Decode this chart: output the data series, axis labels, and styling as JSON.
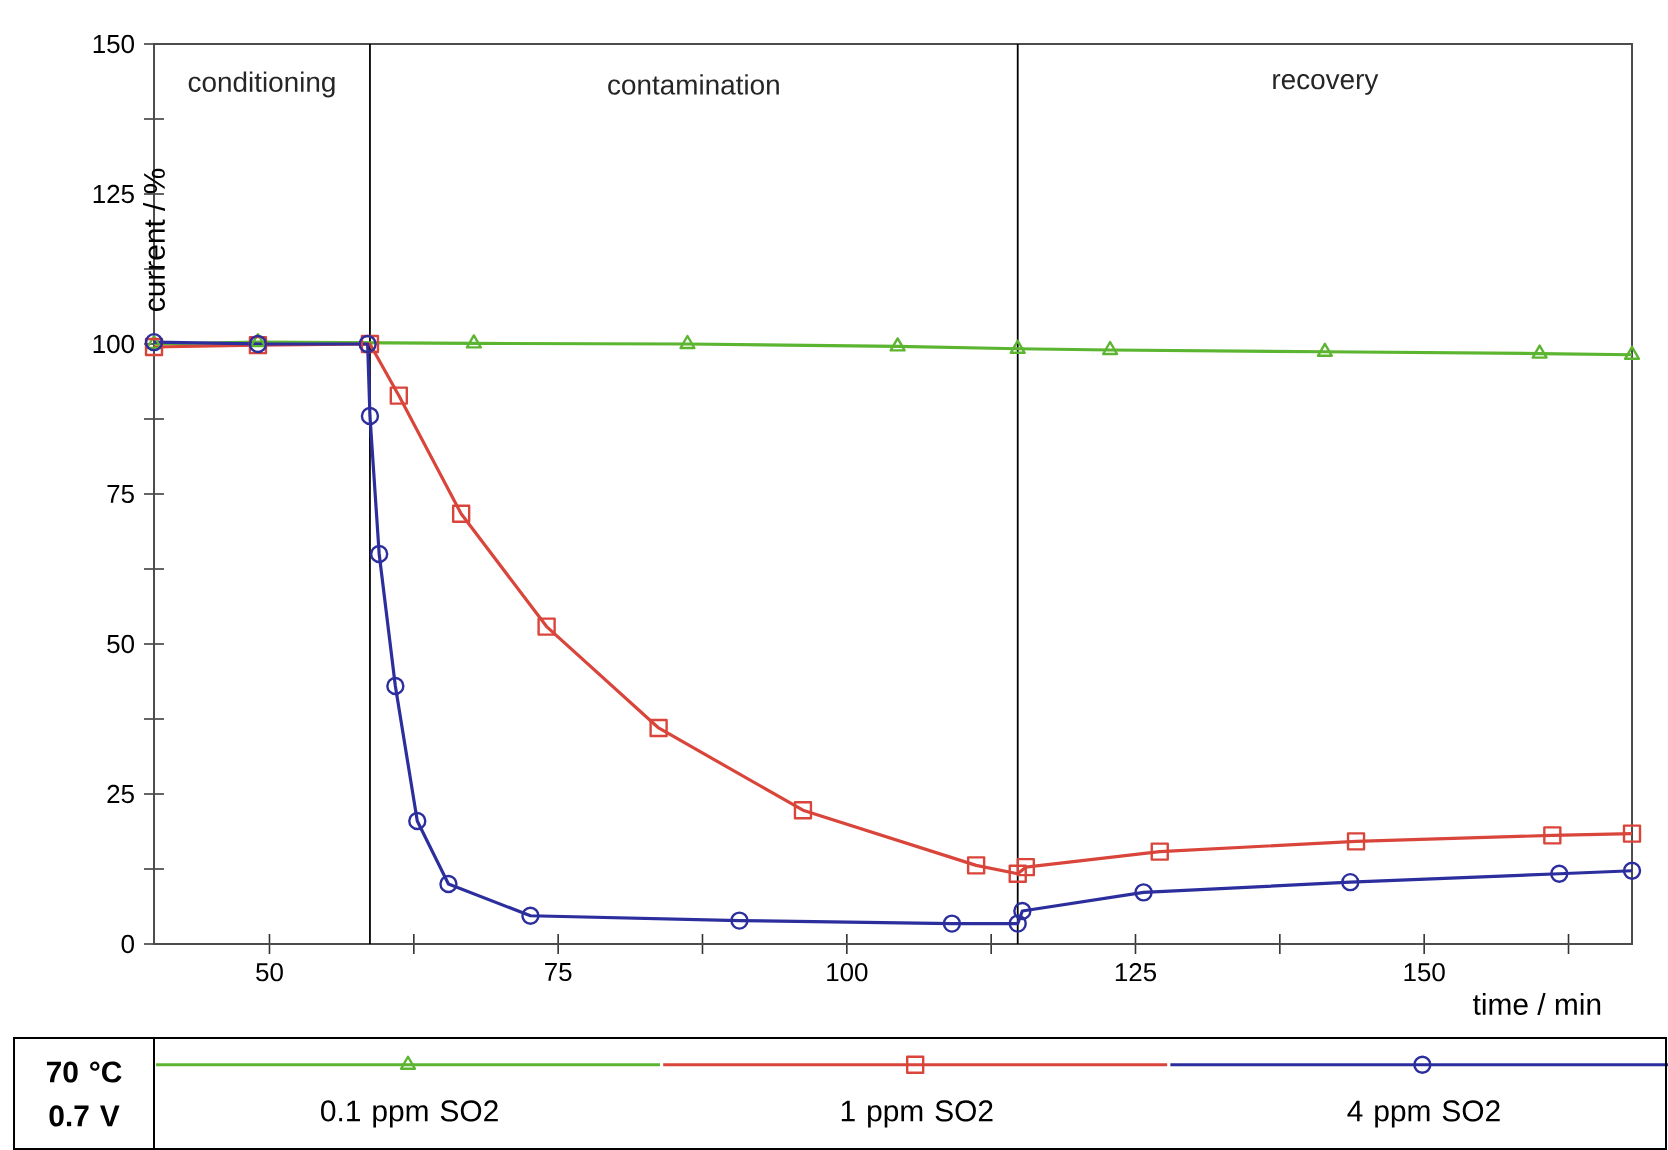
{
  "chart_data": {
    "type": "line",
    "xlabel": "time / min",
    "ylabel": "current / %",
    "legend_title": "70 °C 0.7 V",
    "legend": "bottom",
    "xlim": [
      40,
      168
    ],
    "ylim": [
      0,
      150
    ],
    "xticks": [
      50,
      {
        "value": 62.5,
        "label": null
      },
      75,
      {
        "value": 87.5,
        "label": null
      },
      100,
      {
        "value": 112.5,
        "label": null
      },
      125,
      {
        "value": 137.5,
        "label": null
      },
      150,
      {
        "value": 162.5,
        "label": null
      }
    ],
    "yticks": [
      0,
      {
        "value": 12.5,
        "label": null
      },
      25,
      {
        "value": 37.5,
        "label": null
      },
      50,
      {
        "value": 62.5,
        "label": null
      },
      75,
      {
        "value": 87.5,
        "label": null
      },
      100,
      {
        "value": 112.5,
        "label": null
      },
      125,
      {
        "value": 137.5,
        "label": null
      },
      150
    ],
    "ref_lines": [
      {
        "axis": "x",
        "value": 58.7
      },
      {
        "axis": "x",
        "value": 114.8
      }
    ],
    "annotations": [
      "conditioning",
      "contamination",
      "recovery"
    ],
    "series": [
      {
        "name": "0.1 ppm SO2",
        "color": "#5cb531",
        "marker": "triangle",
        "x": [
          40,
          49,
          67.7,
          86.2,
          104.4,
          114.8,
          122.8,
          141.4,
          160,
          168
        ],
        "values": [
          100,
          100.3,
          100.1,
          100,
          99.6,
          99.2,
          99,
          98.7,
          98.4,
          98.2
        ]
      },
      {
        "name": "1 ppm SO2",
        "color": "#d9453a",
        "marker": "square",
        "x": [
          40,
          49,
          58.7,
          61.2,
          66.6,
          74,
          83.7,
          96.2,
          111.2,
          114.8,
          115.5,
          127.1,
          144.1,
          161.1,
          168
        ],
        "values": [
          99.5,
          99.8,
          100,
          91.4,
          71.7,
          52.9,
          36,
          22.3,
          13.1,
          11.7,
          12.8,
          15.4,
          17.1,
          18.1,
          18.4
        ]
      },
      {
        "name": "4 ppm SO2",
        "color": "#2b2e9c",
        "marker": "circle",
        "x": [
          40,
          49,
          58.5,
          58.7,
          59.5,
          60.9,
          62.8,
          65.5,
          72.6,
          90.7,
          109.1,
          114.8,
          115.2,
          125.7,
          143.6,
          161.7,
          168
        ],
        "values": [
          100.3,
          100,
          100,
          88,
          65,
          43,
          20.5,
          10,
          4.7,
          3.9,
          3.4,
          3.4,
          5.5,
          8.6,
          10.3,
          11.7,
          12.2
        ]
      }
    ]
  }
}
